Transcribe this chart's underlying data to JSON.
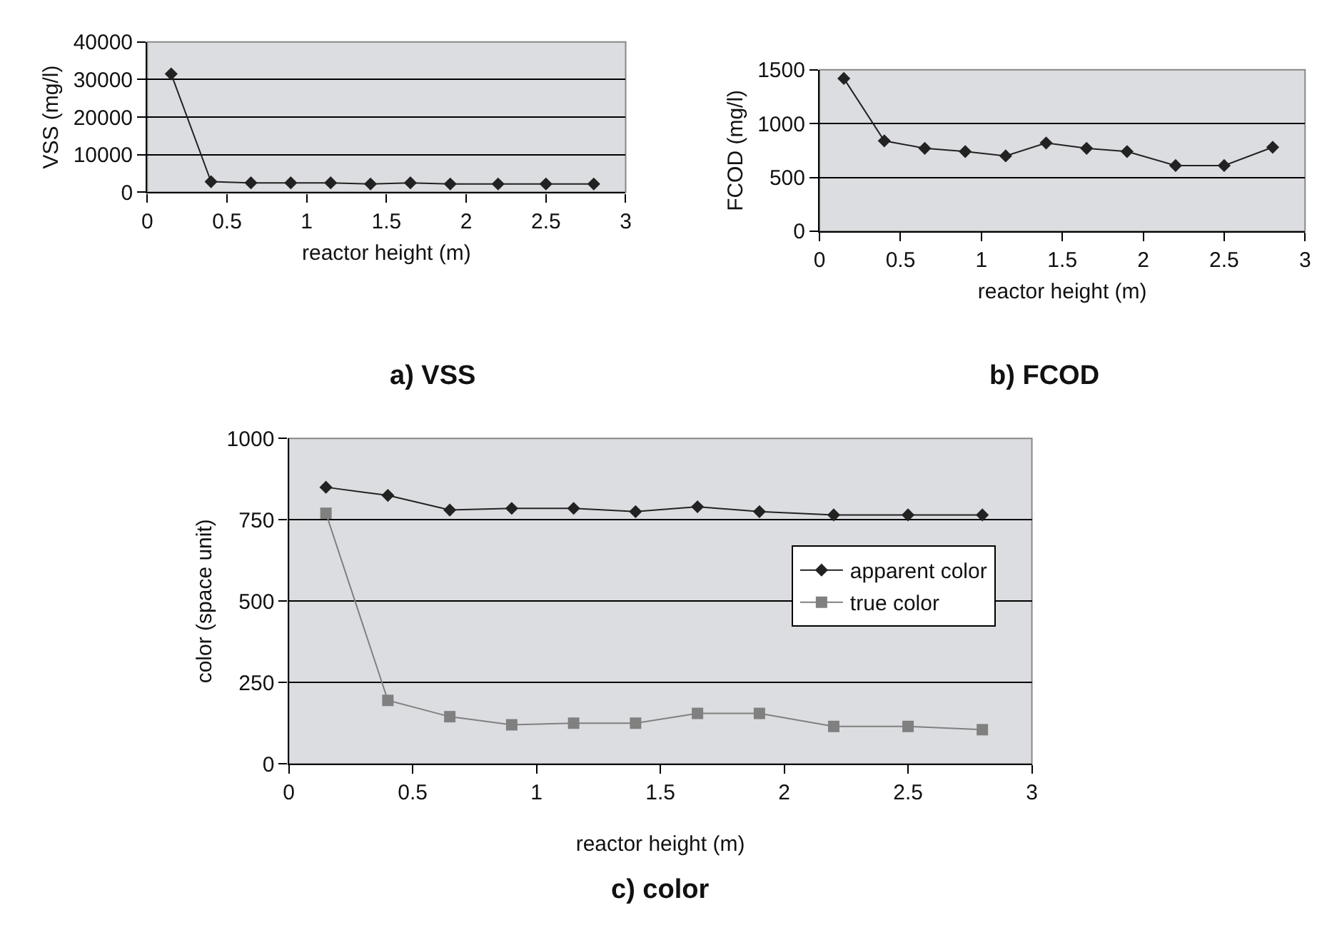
{
  "chart_data": [
    {
      "type": "line",
      "title": "a) VSS",
      "xlabel": "reactor height (m)",
      "ylabel": "VSS (mg/l)",
      "x": [
        0.15,
        0.4,
        0.65,
        0.9,
        1.15,
        1.4,
        1.65,
        1.9,
        2.2,
        2.5,
        2.8
      ],
      "series": [
        {
          "color": "#222222",
          "values": [
            31500,
            2800,
            2500,
            2500,
            2500,
            2200,
            2500,
            2200,
            2200,
            2200,
            2200
          ]
        }
      ],
      "xlim": [
        0,
        3
      ],
      "xticks": [
        0,
        0.5,
        1,
        1.5,
        2,
        2.5,
        3
      ],
      "ylim": [
        0,
        40000
      ],
      "yticks": [
        0,
        10000,
        20000,
        30000,
        40000
      ],
      "grid": "y",
      "marker": "diamond",
      "legend": false
    },
    {
      "type": "line",
      "title": "b) FCOD",
      "xlabel": "reactor height (m)",
      "ylabel": "FCOD (mg/l)",
      "x": [
        0.15,
        0.4,
        0.65,
        0.9,
        1.15,
        1.4,
        1.65,
        1.9,
        2.2,
        2.5,
        2.8
      ],
      "series": [
        {
          "color": "#222222",
          "values": [
            1420,
            840,
            770,
            740,
            700,
            820,
            770,
            740,
            610,
            610,
            780
          ]
        }
      ],
      "xlim": [
        0,
        3
      ],
      "xticks": [
        0,
        0.5,
        1,
        1.5,
        2,
        2.5,
        3
      ],
      "ylim": [
        0,
        1500
      ],
      "yticks": [
        0,
        500,
        1000,
        1500
      ],
      "grid": "y",
      "marker": "diamond",
      "legend": false
    },
    {
      "type": "line",
      "title": "c) color",
      "xlabel": "reactor height (m)",
      "ylabel": "color (space unit)",
      "x": [
        0.15,
        0.4,
        0.65,
        0.9,
        1.15,
        1.4,
        1.65,
        1.9,
        2.2,
        2.5,
        2.8
      ],
      "series": [
        {
          "name": "apparent color",
          "color": "#222222",
          "marker": "diamond",
          "values": [
            850,
            825,
            780,
            785,
            785,
            775,
            790,
            775,
            765,
            765,
            765
          ]
        },
        {
          "name": "true color",
          "color": "#808080",
          "marker": "square",
          "values": [
            770,
            195,
            145,
            120,
            125,
            125,
            155,
            155,
            115,
            115,
            105
          ]
        }
      ],
      "xlim": [
        0,
        3
      ],
      "xticks": [
        0,
        0.5,
        1,
        1.5,
        2,
        2.5,
        3
      ],
      "ylim": [
        0,
        1000
      ],
      "yticks": [
        0,
        250,
        500,
        750,
        1000
      ],
      "grid": "y",
      "legend": "right"
    }
  ]
}
